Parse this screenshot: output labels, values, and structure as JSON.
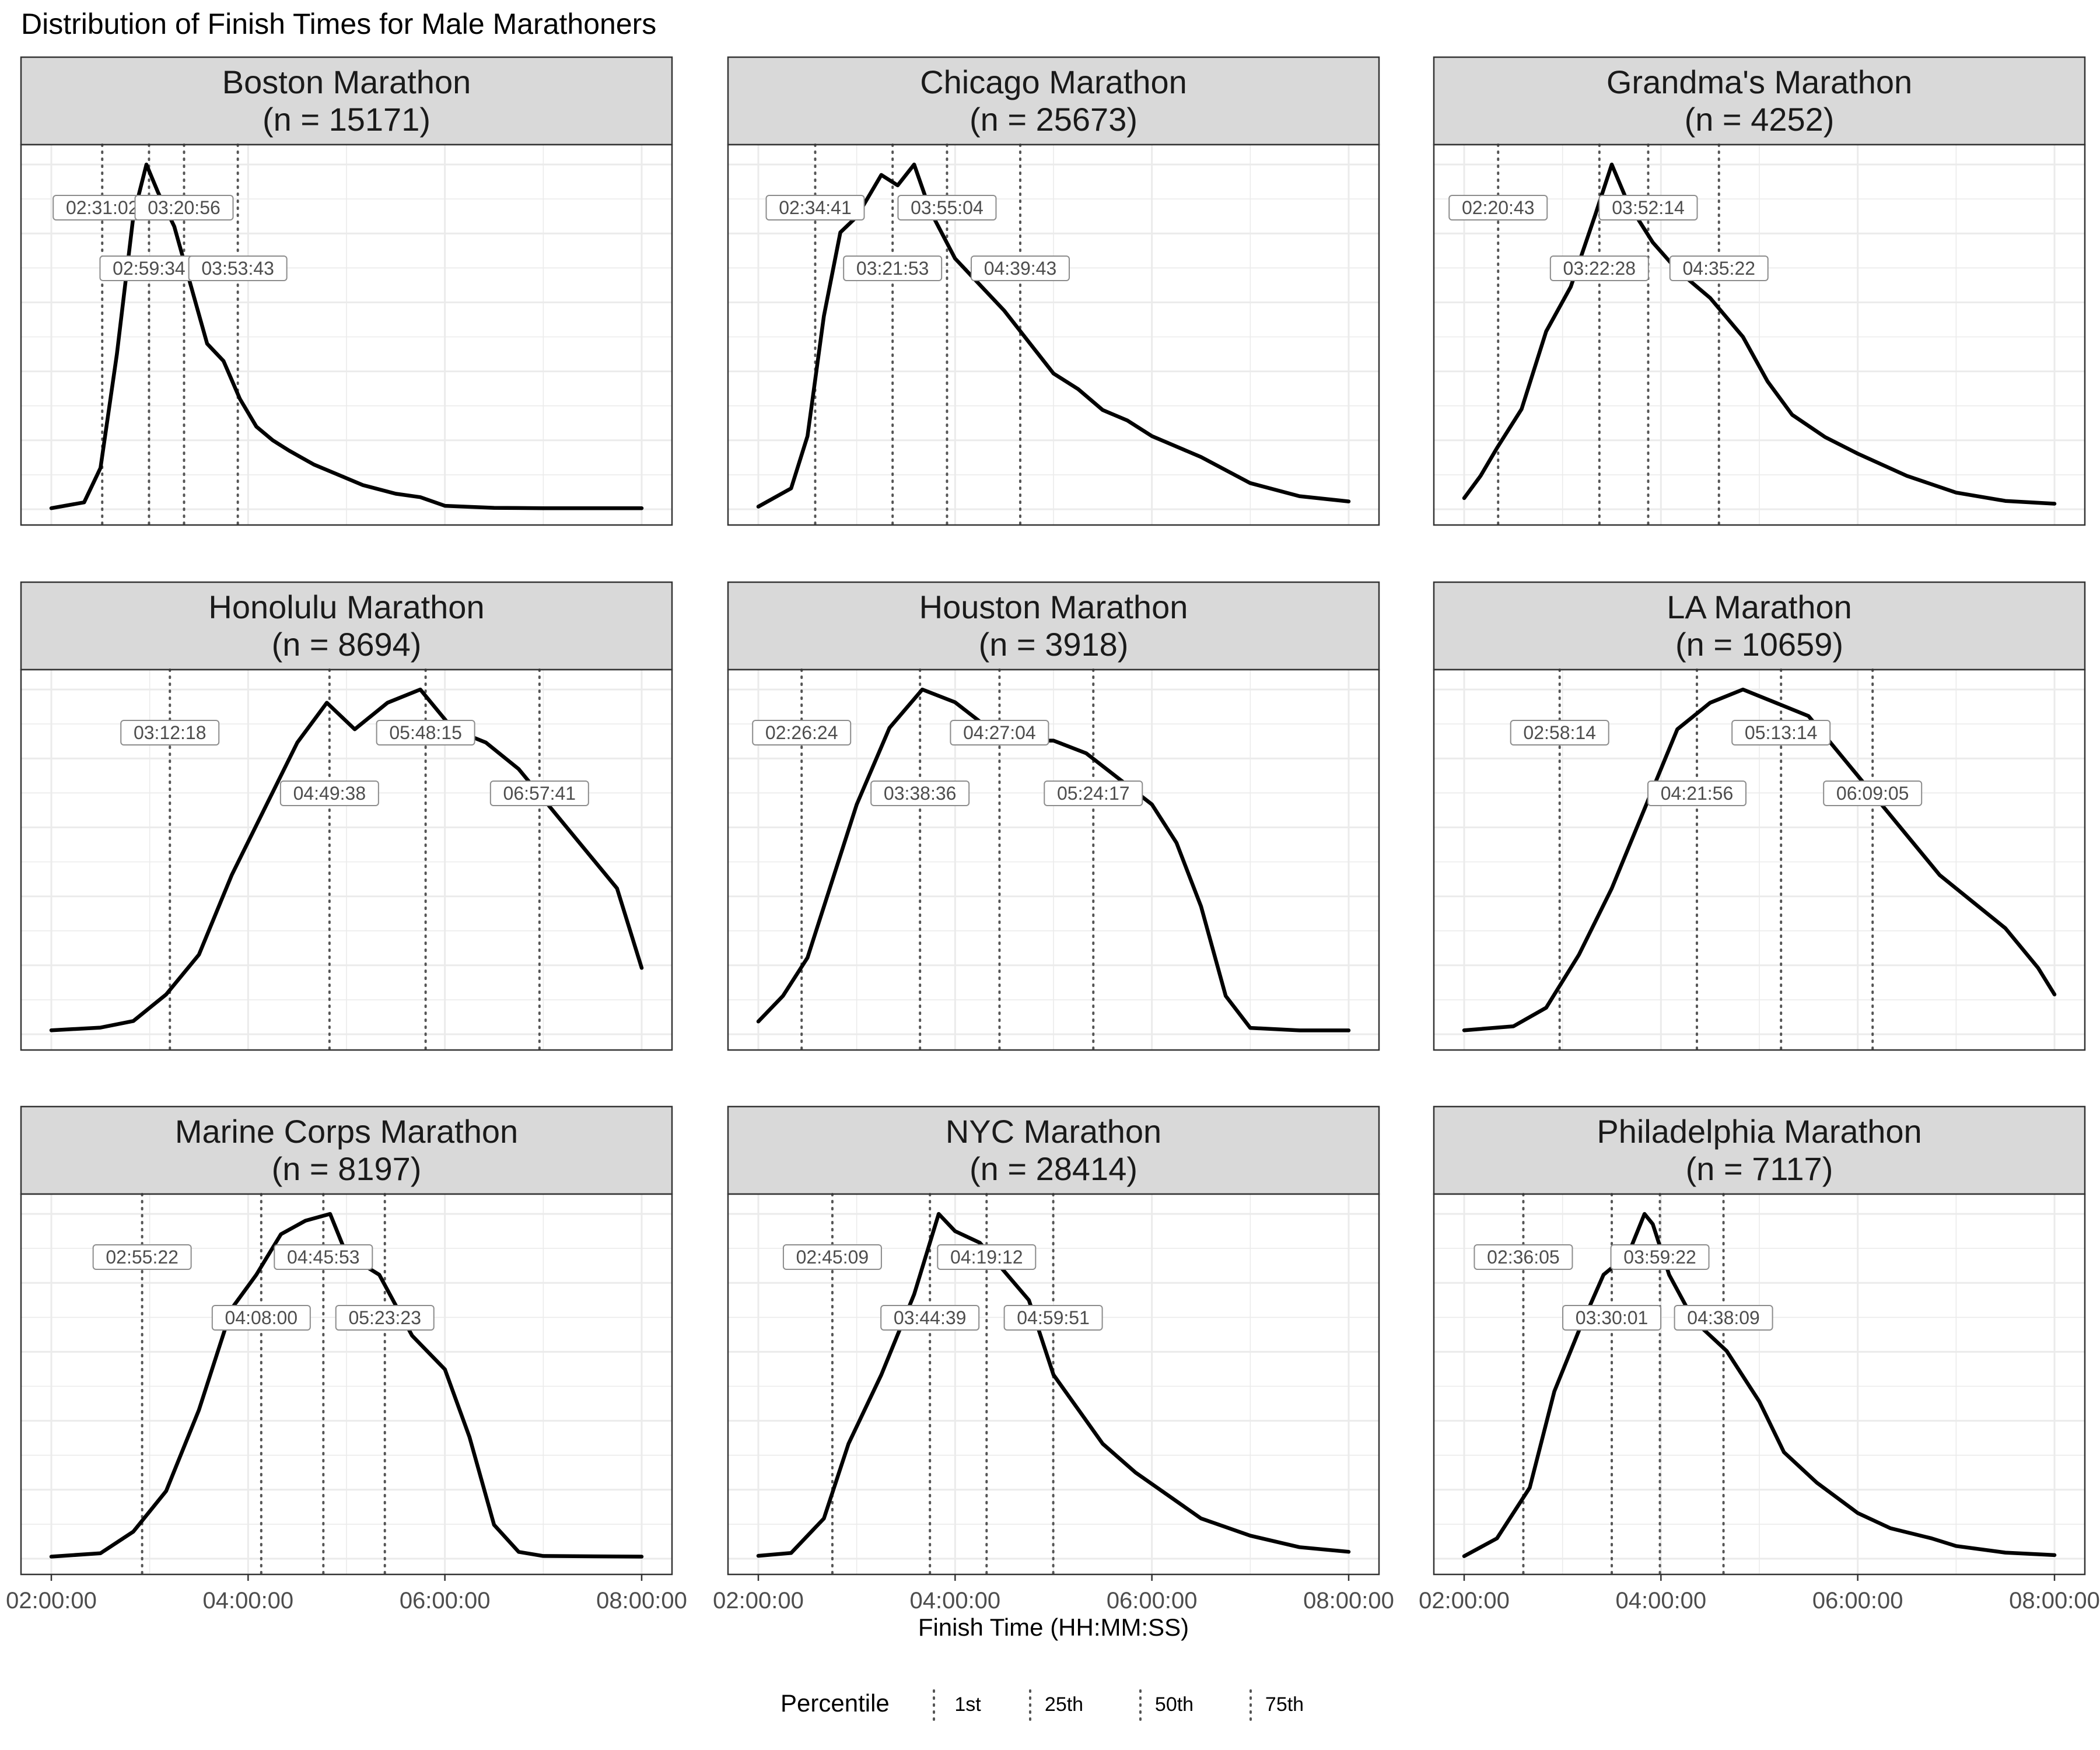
{
  "title": "Distribution of Finish Times for Male Marathoners",
  "chart_data": {
    "type": "line",
    "subtype": "density",
    "title": "Distribution of Finish Times for Male Marathoners",
    "xlabel": "Finish Time (HH:MM:SS)",
    "ylabel": "",
    "xlim": [
      "02:00:00",
      "08:00:00"
    ],
    "x_ticks": [
      "02:00:00",
      "04:00:00",
      "06:00:00",
      "08:00:00"
    ],
    "grid": true,
    "legend": {
      "title": "Percentile",
      "position": "bottom",
      "entries": [
        "1st",
        "25th",
        "50th",
        "75th"
      ]
    },
    "facets": [
      {
        "name": "Boston Marathon",
        "n_label": "(n = 15171)",
        "percentiles": {
          "1st": "02:31:02",
          "25th": "02:59:34",
          "50th": "03:20:56",
          "75th": "03:53:43"
        },
        "density": [
          [
            "02:00:00",
            0.003
          ],
          [
            "02:20:00",
            0.02
          ],
          [
            "02:30:00",
            0.12
          ],
          [
            "02:40:00",
            0.45
          ],
          [
            "02:50:00",
            0.85
          ],
          [
            "02:58:00",
            1.0
          ],
          [
            "03:05:00",
            0.92
          ],
          [
            "03:15:00",
            0.82
          ],
          [
            "03:25:00",
            0.65
          ],
          [
            "03:35:00",
            0.48
          ],
          [
            "03:45:00",
            0.43
          ],
          [
            "03:55:00",
            0.32
          ],
          [
            "04:05:00",
            0.24
          ],
          [
            "04:15:00",
            0.2
          ],
          [
            "04:25:00",
            0.17
          ],
          [
            "04:40:00",
            0.13
          ],
          [
            "04:55:00",
            0.1
          ],
          [
            "05:10:00",
            0.07
          ],
          [
            "05:30:00",
            0.045
          ],
          [
            "05:45:00",
            0.035
          ],
          [
            "06:00:00",
            0.01
          ],
          [
            "06:30:00",
            0.004
          ],
          [
            "07:00:00",
            0.003
          ],
          [
            "08:00:00",
            0.003
          ]
        ]
      },
      {
        "name": "Chicago Marathon",
        "n_label": "(n = 25673)",
        "percentiles": {
          "1st": "02:34:41",
          "25th": "03:21:53",
          "50th": "03:55:04",
          "75th": "04:39:43"
        },
        "density": [
          [
            "02:00:00",
            0.005
          ],
          [
            "02:20:00",
            0.04
          ],
          [
            "02:30:00",
            0.14
          ],
          [
            "02:40:00",
            0.37
          ],
          [
            "02:50:00",
            0.53
          ],
          [
            "03:00:00",
            0.56
          ],
          [
            "03:15:00",
            0.64
          ],
          [
            "03:25:00",
            0.62
          ],
          [
            "03:35:00",
            0.66
          ],
          [
            "03:45:00",
            0.57
          ],
          [
            "04:00:00",
            0.48
          ],
          [
            "04:15:00",
            0.43
          ],
          [
            "04:30:00",
            0.38
          ],
          [
            "04:45:00",
            0.32
          ],
          [
            "05:00:00",
            0.26
          ],
          [
            "05:15:00",
            0.23
          ],
          [
            "05:30:00",
            0.19
          ],
          [
            "05:45:00",
            0.17
          ],
          [
            "06:00:00",
            0.14
          ],
          [
            "06:30:00",
            0.1
          ],
          [
            "07:00:00",
            0.05
          ],
          [
            "07:30:00",
            0.025
          ],
          [
            "08:00:00",
            0.015
          ]
        ]
      },
      {
        "name": "Grandma's Marathon",
        "n_label": "(n = 4252)",
        "percentiles": {
          "1st": "02:20:43",
          "25th": "03:22:28",
          "50th": "03:52:14",
          "75th": "04:35:22"
        },
        "density": [
          [
            "02:00:00",
            0.02
          ],
          [
            "02:10:00",
            0.06
          ],
          [
            "02:20:00",
            0.11
          ],
          [
            "02:35:00",
            0.18
          ],
          [
            "02:50:00",
            0.32
          ],
          [
            "03:05:00",
            0.4
          ],
          [
            "03:20:00",
            0.53
          ],
          [
            "03:30:00",
            0.62
          ],
          [
            "03:40:00",
            0.55
          ],
          [
            "03:55:00",
            0.48
          ],
          [
            "04:10:00",
            0.43
          ],
          [
            "04:30:00",
            0.38
          ],
          [
            "04:50:00",
            0.31
          ],
          [
            "05:05:00",
            0.23
          ],
          [
            "05:20:00",
            0.17
          ],
          [
            "05:40:00",
            0.13
          ],
          [
            "06:00:00",
            0.1
          ],
          [
            "06:30:00",
            0.06
          ],
          [
            "07:00:00",
            0.03
          ],
          [
            "07:30:00",
            0.015
          ],
          [
            "08:00:00",
            0.01
          ]
        ]
      },
      {
        "name": "Honolulu Marathon",
        "n_label": "(n = 8694)",
        "percentiles": {
          "1st": "03:12:18",
          "25th": "04:49:38",
          "50th": "05:48:15",
          "75th": "06:57:41"
        },
        "density": [
          [
            "02:00:00",
            0.003
          ],
          [
            "02:30:00",
            0.005
          ],
          [
            "02:50:00",
            0.01
          ],
          [
            "03:10:00",
            0.03
          ],
          [
            "03:30:00",
            0.06
          ],
          [
            "03:50:00",
            0.12
          ],
          [
            "04:10:00",
            0.17
          ],
          [
            "04:30:00",
            0.22
          ],
          [
            "04:48:00",
            0.25
          ],
          [
            "05:05:00",
            0.23
          ],
          [
            "05:25:00",
            0.25
          ],
          [
            "05:45:00",
            0.26
          ],
          [
            "06:05:00",
            0.23
          ],
          [
            "06:25:00",
            0.22
          ],
          [
            "06:45:00",
            0.2
          ],
          [
            "07:05:00",
            0.17
          ],
          [
            "07:25:00",
            0.14
          ],
          [
            "07:45:00",
            0.11
          ],
          [
            "08:00:00",
            0.05
          ]
        ]
      },
      {
        "name": "Houston Marathon",
        "n_label": "(n = 3918)",
        "percentiles": {
          "1st": "02:26:24",
          "25th": "03:38:36",
          "50th": "04:27:04",
          "75th": "05:24:17"
        },
        "density": [
          [
            "02:00:00",
            0.01
          ],
          [
            "02:15:00",
            0.03
          ],
          [
            "02:30:00",
            0.06
          ],
          [
            "02:45:00",
            0.12
          ],
          [
            "03:00:00",
            0.18
          ],
          [
            "03:20:00",
            0.24
          ],
          [
            "03:40:00",
            0.27
          ],
          [
            "04:00:00",
            0.26
          ],
          [
            "04:20:00",
            0.24
          ],
          [
            "04:40:00",
            0.23
          ],
          [
            "05:00:00",
            0.23
          ],
          [
            "05:20:00",
            0.22
          ],
          [
            "05:40:00",
            0.2
          ],
          [
            "06:00:00",
            0.18
          ],
          [
            "06:15:00",
            0.15
          ],
          [
            "06:30:00",
            0.1
          ],
          [
            "06:45:00",
            0.03
          ],
          [
            "07:00:00",
            0.005
          ],
          [
            "07:30:00",
            0.003
          ],
          [
            "08:00:00",
            0.003
          ]
        ]
      },
      {
        "name": "LA Marathon",
        "n_label": "(n = 10659)",
        "percentiles": {
          "1st": "02:58:14",
          "25th": "04:21:56",
          "50th": "05:13:14",
          "75th": "06:09:05"
        },
        "density": [
          [
            "02:00:00",
            0.003
          ],
          [
            "02:30:00",
            0.006
          ],
          [
            "02:50:00",
            0.02
          ],
          [
            "03:10:00",
            0.06
          ],
          [
            "03:30:00",
            0.11
          ],
          [
            "03:50:00",
            0.17
          ],
          [
            "04:10:00",
            0.23
          ],
          [
            "04:30:00",
            0.25
          ],
          [
            "04:50:00",
            0.26
          ],
          [
            "05:10:00",
            0.25
          ],
          [
            "05:30:00",
            0.24
          ],
          [
            "05:50:00",
            0.21
          ],
          [
            "06:10:00",
            0.18
          ],
          [
            "06:30:00",
            0.15
          ],
          [
            "06:50:00",
            0.12
          ],
          [
            "07:10:00",
            0.1
          ],
          [
            "07:30:00",
            0.08
          ],
          [
            "07:50:00",
            0.05
          ],
          [
            "08:00:00",
            0.03
          ]
        ]
      },
      {
        "name": "Marine Corps Marathon",
        "n_label": "(n = 8197)",
        "percentiles": {
          "1st": "02:55:22",
          "25th": "04:08:00",
          "50th": "04:45:53",
          "75th": "05:23:23"
        },
        "density": [
          [
            "02:00:00",
            0.003
          ],
          [
            "02:30:00",
            0.008
          ],
          [
            "02:50:00",
            0.04
          ],
          [
            "03:10:00",
            0.1
          ],
          [
            "03:30:00",
            0.22
          ],
          [
            "03:50:00",
            0.37
          ],
          [
            "04:05:00",
            0.42
          ],
          [
            "04:20:00",
            0.48
          ],
          [
            "04:35:00",
            0.5
          ],
          [
            "04:50:00",
            0.51
          ],
          [
            "05:00:00",
            0.45
          ],
          [
            "05:20:00",
            0.42
          ],
          [
            "05:40:00",
            0.33
          ],
          [
            "06:00:00",
            0.28
          ],
          [
            "06:15:00",
            0.18
          ],
          [
            "06:30:00",
            0.05
          ],
          [
            "06:45:00",
            0.01
          ],
          [
            "07:00:00",
            0.004
          ],
          [
            "08:00:00",
            0.003
          ]
        ]
      },
      {
        "name": "NYC Marathon",
        "n_label": "(n = 28414)",
        "percentiles": {
          "1st": "02:45:09",
          "25th": "03:44:39",
          "50th": "04:19:12",
          "75th": "04:59:51"
        },
        "density": [
          [
            "02:00:00",
            0.005
          ],
          [
            "02:20:00",
            0.01
          ],
          [
            "02:40:00",
            0.07
          ],
          [
            "02:55:00",
            0.2
          ],
          [
            "03:15:00",
            0.32
          ],
          [
            "03:35:00",
            0.46
          ],
          [
            "03:50:00",
            0.6
          ],
          [
            "04:00:00",
            0.57
          ],
          [
            "04:15:00",
            0.55
          ],
          [
            "04:30:00",
            0.5
          ],
          [
            "04:45:00",
            0.45
          ],
          [
            "05:00:00",
            0.32
          ],
          [
            "05:15:00",
            0.26
          ],
          [
            "05:30:00",
            0.2
          ],
          [
            "05:50:00",
            0.15
          ],
          [
            "06:10:00",
            0.11
          ],
          [
            "06:30:00",
            0.07
          ],
          [
            "07:00:00",
            0.04
          ],
          [
            "07:30:00",
            0.02
          ],
          [
            "08:00:00",
            0.012
          ]
        ]
      },
      {
        "name": "Philadelphia Marathon",
        "n_label": "(n = 7117)",
        "percentiles": {
          "1st": "02:36:05",
          "25th": "03:30:01",
          "50th": "03:59:22",
          "75th": "04:38:09"
        },
        "density": [
          [
            "02:00:00",
            0.005
          ],
          [
            "02:20:00",
            0.04
          ],
          [
            "02:40:00",
            0.14
          ],
          [
            "02:55:00",
            0.33
          ],
          [
            "03:10:00",
            0.45
          ],
          [
            "03:25:00",
            0.56
          ],
          [
            "03:40:00",
            0.6
          ],
          [
            "03:50:00",
            0.68
          ],
          [
            "03:55:00",
            0.66
          ],
          [
            "04:05:00",
            0.56
          ],
          [
            "04:20:00",
            0.47
          ],
          [
            "04:40:00",
            0.41
          ],
          [
            "05:00:00",
            0.31
          ],
          [
            "05:15:00",
            0.21
          ],
          [
            "05:35:00",
            0.15
          ],
          [
            "06:00:00",
            0.09
          ],
          [
            "06:20:00",
            0.06
          ],
          [
            "06:45:00",
            0.04
          ],
          [
            "07:00:00",
            0.025
          ],
          [
            "07:30:00",
            0.012
          ],
          [
            "08:00:00",
            0.007
          ]
        ]
      }
    ]
  }
}
